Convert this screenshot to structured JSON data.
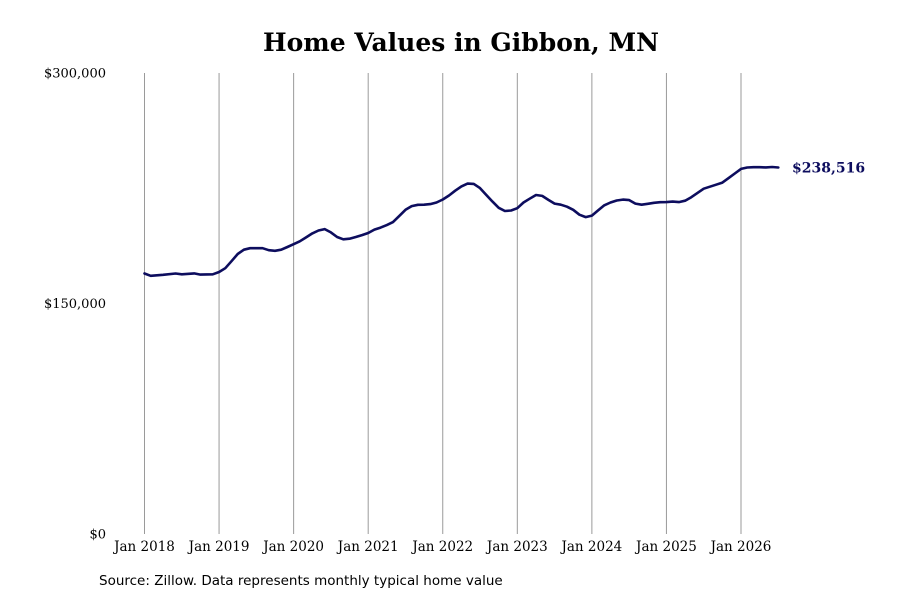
{
  "chart_data": {
    "type": "line",
    "title": "Home Values in Gibbon, MN",
    "xlabel": "",
    "ylabel": "",
    "ylim": [
      0,
      300000
    ],
    "yticks": [
      {
        "value": 0,
        "label": "$0"
      },
      {
        "value": 150000,
        "label": "$150,000"
      },
      {
        "value": 300000,
        "label": "$300,000"
      }
    ],
    "x_ticks": [
      "Jan 2018",
      "Jan 2019",
      "Jan 2020",
      "Jan 2021",
      "Jan 2022",
      "Jan 2023",
      "Jan 2024",
      "Jan 2025",
      "Jan 2026"
    ],
    "x_range": [
      "2018-01",
      "2026-07"
    ],
    "grid": "vertical lines at each January",
    "line_color": "#0d0d5e",
    "end_label": "$238,516",
    "series": [
      {
        "values": [
          [
            "2018-01",
            169500
          ],
          [
            "2018-02",
            168000
          ],
          [
            "2018-04",
            168700
          ],
          [
            "2018-06",
            169500
          ],
          [
            "2018-07",
            169000
          ],
          [
            "2018-09",
            169600
          ],
          [
            "2018-10",
            168800
          ],
          [
            "2018-12",
            169000
          ],
          [
            "2019-01",
            170500
          ],
          [
            "2019-02",
            173000
          ],
          [
            "2019-03",
            177500
          ],
          [
            "2019-04",
            182200
          ],
          [
            "2019-05",
            185000
          ],
          [
            "2019-06",
            186000
          ],
          [
            "2019-08",
            186000
          ],
          [
            "2019-09",
            184700
          ],
          [
            "2019-10",
            184300
          ],
          [
            "2019-11",
            185000
          ],
          [
            "2019-12",
            186800
          ],
          [
            "2020-01",
            188600
          ],
          [
            "2020-02",
            190500
          ],
          [
            "2020-03",
            193000
          ],
          [
            "2020-04",
            195600
          ],
          [
            "2020-05",
            197500
          ],
          [
            "2020-06",
            198400
          ],
          [
            "2020-07",
            196300
          ],
          [
            "2020-08",
            193300
          ],
          [
            "2020-09",
            191800
          ],
          [
            "2020-10",
            192200
          ],
          [
            "2020-11",
            193300
          ],
          [
            "2020-12",
            194500
          ],
          [
            "2021-01",
            195900
          ],
          [
            "2021-02",
            198100
          ],
          [
            "2021-03",
            199400
          ],
          [
            "2021-04",
            201000
          ],
          [
            "2021-05",
            203000
          ],
          [
            "2021-06",
            207000
          ],
          [
            "2021-07",
            211000
          ],
          [
            "2021-08",
            213400
          ],
          [
            "2021-09",
            214200
          ],
          [
            "2021-10",
            214300
          ],
          [
            "2021-11",
            214700
          ],
          [
            "2021-12",
            215700
          ],
          [
            "2022-01",
            217700
          ],
          [
            "2022-02",
            220300
          ],
          [
            "2022-03",
            223400
          ],
          [
            "2022-04",
            226200
          ],
          [
            "2022-05",
            228000
          ],
          [
            "2022-06",
            227800
          ],
          [
            "2022-07",
            225100
          ],
          [
            "2022-08",
            220700
          ],
          [
            "2022-09",
            216300
          ],
          [
            "2022-10",
            212300
          ],
          [
            "2022-11",
            210200
          ],
          [
            "2022-12",
            210500
          ],
          [
            "2023-01",
            212000
          ],
          [
            "2023-02",
            215700
          ],
          [
            "2023-03",
            218200
          ],
          [
            "2023-04",
            220600
          ],
          [
            "2023-05",
            220000
          ],
          [
            "2023-06",
            217400
          ],
          [
            "2023-07",
            215000
          ],
          [
            "2023-08",
            214300
          ],
          [
            "2023-09",
            213000
          ],
          [
            "2023-10",
            211000
          ],
          [
            "2023-11",
            207800
          ],
          [
            "2023-12",
            206200
          ],
          [
            "2024-01",
            207200
          ],
          [
            "2024-02",
            210600
          ],
          [
            "2024-03",
            213900
          ],
          [
            "2024-04",
            215700
          ],
          [
            "2024-05",
            217000
          ],
          [
            "2024-06",
            217600
          ],
          [
            "2024-07",
            217300
          ],
          [
            "2024-08",
            215000
          ],
          [
            "2024-09",
            214300
          ],
          [
            "2024-10",
            214900
          ],
          [
            "2024-11",
            215500
          ],
          [
            "2024-12",
            215900
          ],
          [
            "2025-01",
            216000
          ],
          [
            "2025-02",
            216300
          ],
          [
            "2025-03",
            216000
          ],
          [
            "2025-04",
            216900
          ],
          [
            "2025-05",
            219200
          ],
          [
            "2025-06",
            222000
          ],
          [
            "2025-07",
            224700
          ],
          [
            "2025-08",
            226000
          ],
          [
            "2025-09",
            227300
          ],
          [
            "2025-10",
            228700
          ],
          [
            "2025-11",
            231600
          ],
          [
            "2025-12",
            234600
          ],
          [
            "2026-01",
            237600
          ],
          [
            "2026-02",
            238500
          ],
          [
            "2026-03",
            238700
          ],
          [
            "2026-04",
            238700
          ],
          [
            "2026-05",
            238600
          ],
          [
            "2026-06",
            238800
          ],
          [
            "2026-07",
            238516
          ]
        ]
      }
    ]
  },
  "source_note": "Source: Zillow. Data represents monthly typical home value"
}
